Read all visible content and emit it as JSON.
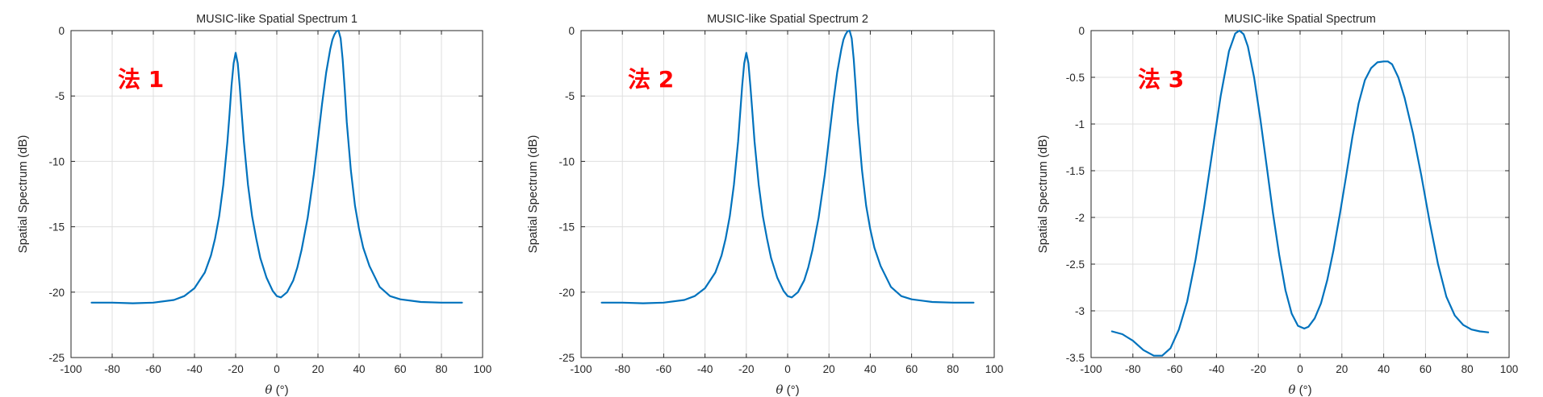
{
  "colors": {
    "line": "#0072BD",
    "annotation": "#FF0000",
    "grid": "#DFDFDF",
    "axis": "#262626"
  },
  "chart_data": [
    {
      "type": "line",
      "title": "MUSIC-like Spatial Spectrum 1",
      "xlabel": "θ (°)",
      "ylabel": "Spatial Spectrum (dB)",
      "annotation": "法 1",
      "xlim": [
        -100,
        100
      ],
      "ylim": [
        -25,
        0
      ],
      "xticks": [
        -100,
        -80,
        -60,
        -40,
        -20,
        0,
        20,
        40,
        60,
        80,
        100
      ],
      "yticks": [
        -25,
        -20,
        -15,
        -10,
        -5,
        0
      ],
      "grid": true,
      "series": [
        {
          "x": [
            -90,
            -80,
            -70,
            -60,
            -50,
            -45,
            -40,
            -35,
            -32,
            -30,
            -28,
            -26,
            -24,
            -23,
            -22,
            -21,
            -20,
            -19,
            -18,
            -17,
            -16,
            -14,
            -12,
            -10,
            -8,
            -5,
            -2,
            0,
            2,
            5,
            8,
            10,
            12,
            15,
            18,
            20,
            22,
            24,
            26,
            27,
            28,
            29,
            30,
            31,
            32,
            33,
            34,
            36,
            38,
            40,
            42,
            45,
            50,
            55,
            60,
            70,
            80,
            90
          ],
          "y": [
            -20.8,
            -20.8,
            -20.85,
            -20.8,
            -20.6,
            -20.3,
            -19.7,
            -18.5,
            -17.2,
            -15.9,
            -14.2,
            -11.8,
            -8.5,
            -6.4,
            -4.2,
            -2.5,
            -1.7,
            -2.5,
            -4.3,
            -6.4,
            -8.5,
            -11.8,
            -14.2,
            -15.9,
            -17.4,
            -18.9,
            -19.9,
            -20.3,
            -20.4,
            -20.0,
            -19.1,
            -18.1,
            -16.8,
            -14.3,
            -11.0,
            -8.3,
            -5.6,
            -3.2,
            -1.4,
            -0.7,
            -0.3,
            -0.05,
            0,
            -0.6,
            -2.2,
            -4.5,
            -7.0,
            -10.7,
            -13.4,
            -15.2,
            -16.6,
            -18.0,
            -19.6,
            -20.3,
            -20.55,
            -20.75,
            -20.8,
            -20.8
          ]
        }
      ]
    },
    {
      "type": "line",
      "title": "MUSIC-like Spatial Spectrum 2",
      "xlabel": "θ (°)",
      "ylabel": "Spatial Spectrum (dB)",
      "annotation": "法 2",
      "xlim": [
        -100,
        100
      ],
      "ylim": [
        -25,
        0
      ],
      "xticks": [
        -100,
        -80,
        -60,
        -40,
        -20,
        0,
        20,
        40,
        60,
        80,
        100
      ],
      "yticks": [
        -25,
        -20,
        -15,
        -10,
        -5,
        0
      ],
      "grid": true,
      "series": [
        {
          "x": [
            -90,
            -80,
            -70,
            -60,
            -50,
            -45,
            -40,
            -35,
            -32,
            -30,
            -28,
            -26,
            -24,
            -23,
            -22,
            -21,
            -20,
            -19,
            -18,
            -17,
            -16,
            -14,
            -12,
            -10,
            -8,
            -5,
            -2,
            0,
            2,
            5,
            8,
            10,
            12,
            15,
            18,
            20,
            22,
            24,
            26,
            27,
            28,
            29,
            30,
            31,
            32,
            33,
            34,
            36,
            38,
            40,
            42,
            45,
            50,
            55,
            60,
            70,
            80,
            90
          ],
          "y": [
            -20.8,
            -20.8,
            -20.85,
            -20.8,
            -20.6,
            -20.3,
            -19.7,
            -18.5,
            -17.2,
            -15.9,
            -14.2,
            -11.8,
            -8.5,
            -6.4,
            -4.2,
            -2.5,
            -1.7,
            -2.5,
            -4.3,
            -6.4,
            -8.5,
            -11.8,
            -14.2,
            -15.9,
            -17.4,
            -18.9,
            -19.9,
            -20.3,
            -20.4,
            -20.0,
            -19.1,
            -18.1,
            -16.8,
            -14.3,
            -11.0,
            -8.3,
            -5.6,
            -3.2,
            -1.4,
            -0.7,
            -0.3,
            -0.05,
            0,
            -0.6,
            -2.2,
            -4.5,
            -7.0,
            -10.7,
            -13.4,
            -15.2,
            -16.6,
            -18.0,
            -19.6,
            -20.3,
            -20.55,
            -20.75,
            -20.8,
            -20.8
          ]
        }
      ]
    },
    {
      "type": "line",
      "title": "MUSIC-like Spatial Spectrum",
      "xlabel": "θ (°)",
      "ylabel": "Spatial Spectrum (dB)",
      "annotation": "法 3",
      "xlim": [
        -100,
        100
      ],
      "ylim": [
        -3.5,
        0
      ],
      "xticks": [
        -100,
        -80,
        -60,
        -40,
        -20,
        0,
        20,
        40,
        60,
        80,
        100
      ],
      "yticks": [
        -3.5,
        -3,
        -2.5,
        -2,
        -1.5,
        -1,
        -0.5,
        0
      ],
      "grid": true,
      "series": [
        {
          "x": [
            -90,
            -85,
            -80,
            -75,
            -70,
            -66,
            -62,
            -58,
            -54,
            -50,
            -46,
            -42,
            -38,
            -34,
            -31,
            -29,
            -27,
            -25,
            -22,
            -19,
            -16,
            -13,
            -10,
            -7,
            -4,
            -1,
            2,
            4,
            7,
            10,
            13,
            16,
            19,
            22,
            25,
            28,
            31,
            34,
            37,
            40,
            42,
            44,
            47,
            50,
            54,
            58,
            62,
            66,
            70,
            74,
            78,
            82,
            86,
            90
          ],
          "y": [
            -3.22,
            -3.25,
            -3.32,
            -3.42,
            -3.48,
            -3.48,
            -3.4,
            -3.2,
            -2.9,
            -2.45,
            -1.9,
            -1.3,
            -0.7,
            -0.22,
            -0.03,
            0,
            -0.04,
            -0.17,
            -0.5,
            -0.95,
            -1.45,
            -1.95,
            -2.4,
            -2.78,
            -3.03,
            -3.16,
            -3.19,
            -3.17,
            -3.08,
            -2.92,
            -2.67,
            -2.35,
            -1.97,
            -1.56,
            -1.14,
            -0.78,
            -0.53,
            -0.4,
            -0.34,
            -0.33,
            -0.33,
            -0.36,
            -0.5,
            -0.72,
            -1.1,
            -1.55,
            -2.05,
            -2.5,
            -2.85,
            -3.05,
            -3.15,
            -3.2,
            -3.22,
            -3.23
          ]
        }
      ]
    }
  ]
}
